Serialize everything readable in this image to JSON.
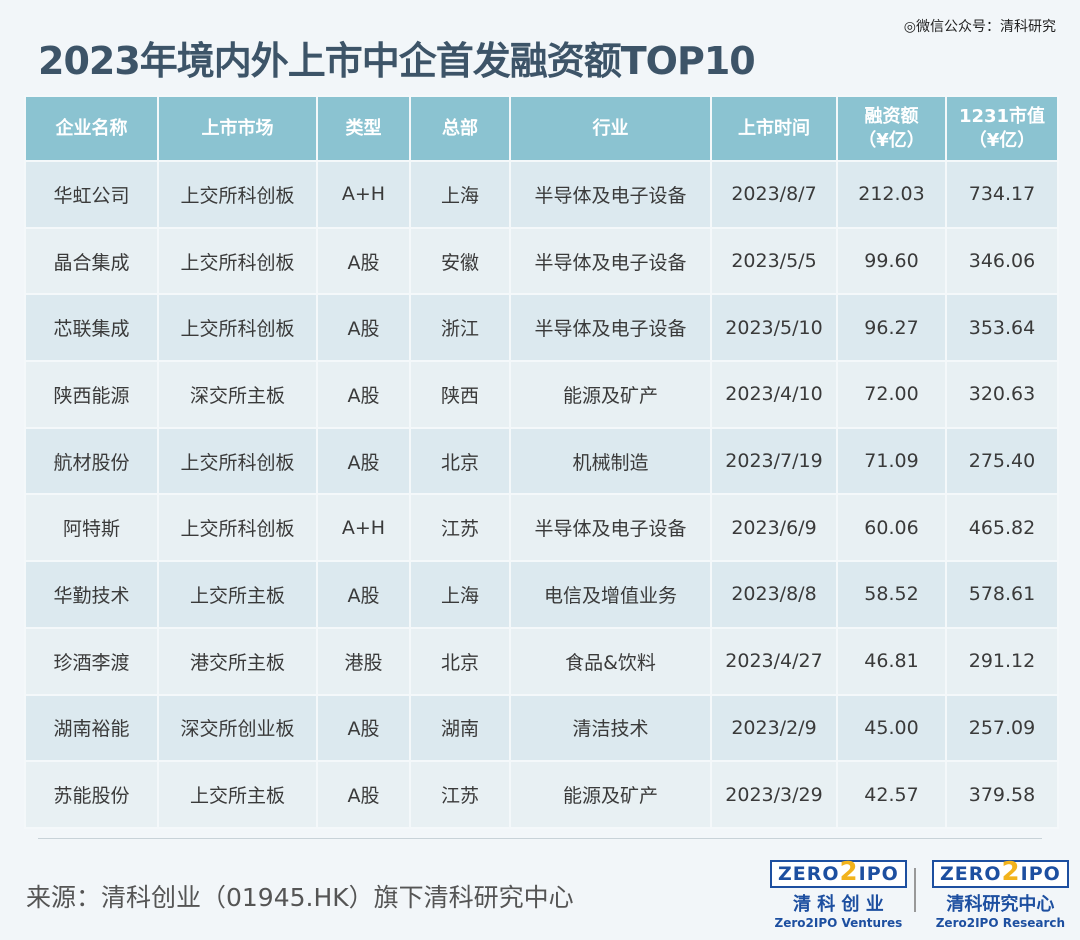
{
  "watermark": "◎微信公众号：清科研究",
  "title": "2023年境内外上市中企首发融资额TOP10",
  "table": {
    "headers": [
      "企业名称",
      "上市市场",
      "类型",
      "总部",
      "行业",
      "上市时间",
      "融资额\n（¥亿）",
      "1231市值\n（¥亿）"
    ],
    "rows": [
      [
        "华虹公司",
        "上交所科创板",
        "A+H",
        "上海",
        "半导体及电子设备",
        "2023/8/7",
        "212.03",
        "734.17"
      ],
      [
        "晶合集成",
        "上交所科创板",
        "A股",
        "安徽",
        "半导体及电子设备",
        "2023/5/5",
        "99.60",
        "346.06"
      ],
      [
        "芯联集成",
        "上交所科创板",
        "A股",
        "浙江",
        "半导体及电子设备",
        "2023/5/10",
        "96.27",
        "353.64"
      ],
      [
        "陕西能源",
        "深交所主板",
        "A股",
        "陕西",
        "能源及矿产",
        "2023/4/10",
        "72.00",
        "320.63"
      ],
      [
        "航材股份",
        "上交所科创板",
        "A股",
        "北京",
        "机械制造",
        "2023/7/19",
        "71.09",
        "275.40"
      ],
      [
        "阿特斯",
        "上交所科创板",
        "A+H",
        "江苏",
        "半导体及电子设备",
        "2023/6/9",
        "60.06",
        "465.82"
      ],
      [
        "华勤技术",
        "上交所主板",
        "A股",
        "上海",
        "电信及增值业务",
        "2023/8/8",
        "58.52",
        "578.61"
      ],
      [
        "珍酒李渡",
        "港交所主板",
        "港股",
        "北京",
        "食品&饮料",
        "2023/4/27",
        "46.81",
        "291.12"
      ],
      [
        "湖南裕能",
        "深交所创业板",
        "A股",
        "湖南",
        "清洁技术",
        "2023/2/9",
        "45.00",
        "257.09"
      ],
      [
        "苏能股份",
        "上交所主板",
        "A股",
        "江苏",
        "能源及矿产",
        "2023/3/29",
        "42.57",
        "379.58"
      ]
    ]
  },
  "source": "来源：清科创业（01945.HK）旗下清科研究中心",
  "logos": [
    {
      "mark": "ZERO2IPO",
      "cn": "清 科 创 业",
      "en": "Zero2IPO Ventures"
    },
    {
      "mark": "ZERO2IPO",
      "cn": "清科研究中心",
      "en": "Zero2IPO Research"
    }
  ]
}
